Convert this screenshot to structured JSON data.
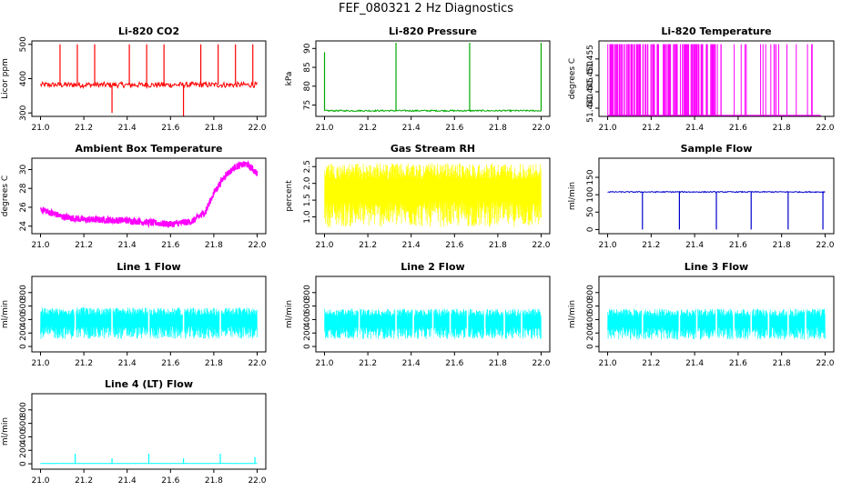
{
  "figure_title": "FEF_080321  2 Hz Diagnostics",
  "chart_data": [
    {
      "type": "line",
      "title": "Li-820 CO2",
      "ylabel": "Licor ppm",
      "xlim": [
        21.0,
        22.0
      ],
      "ylim": [
        290,
        510
      ],
      "x_ticks": [
        21.0,
        21.2,
        21.4,
        21.6,
        21.8,
        22.0
      ],
      "x_tick_labels": [
        "21.0",
        "21.2",
        "21.4",
        "21.6",
        "21.8",
        "22.0"
      ],
      "y_ticks": [
        300,
        400,
        500
      ],
      "y_tick_labels": [
        "300",
        "400",
        "500"
      ],
      "color": "#ff0000",
      "style": "noise",
      "baseline": 382,
      "noise": 8,
      "spikes": [
        [
          21.09,
          500
        ],
        [
          21.17,
          500
        ],
        [
          21.25,
          500
        ],
        [
          21.33,
          300
        ],
        [
          21.41,
          500
        ],
        [
          21.49,
          500
        ],
        [
          21.57,
          500
        ],
        [
          21.66,
          290
        ],
        [
          21.74,
          500
        ],
        [
          21.82,
          500
        ],
        [
          21.9,
          500
        ],
        [
          21.98,
          500
        ]
      ]
    },
    {
      "type": "line",
      "title": "Li-820 Pressure",
      "ylabel": "kPa",
      "xlim": [
        21.0,
        22.0
      ],
      "ylim": [
        72,
        92
      ],
      "x_ticks": [
        21.0,
        21.2,
        21.4,
        21.6,
        21.8,
        22.0
      ],
      "x_tick_labels": [
        "21.0",
        "21.2",
        "21.4",
        "21.6",
        "21.8",
        "22.0"
      ],
      "y_ticks": [
        75,
        80,
        85,
        90
      ],
      "y_tick_labels": [
        "75",
        "80",
        "85",
        "90"
      ],
      "color": "#00aa00",
      "style": "noise",
      "baseline": 73.5,
      "noise": 0.2,
      "spikes": [
        [
          21.0,
          89
        ],
        [
          21.33,
          91.5
        ],
        [
          21.67,
          91.5
        ],
        [
          22.0,
          91.5
        ]
      ]
    },
    {
      "type": "line",
      "title": "Li-820 Temperature",
      "ylabel": "degrees C",
      "xlim": [
        21.0,
        22.0
      ],
      "ylim": [
        51.4375,
        51.4605
      ],
      "x_ticks": [
        21.0,
        21.2,
        21.4,
        21.6,
        21.8,
        22.0
      ],
      "x_tick_labels": [
        "21.0",
        "21.2",
        "21.4",
        "21.6",
        "21.8",
        "22.0"
      ],
      "y_ticks": [
        51.44,
        51.445,
        51.45,
        51.455
      ],
      "y_tick_labels": [
        "51.440",
        "51.445",
        "51.450",
        "51.455"
      ],
      "color": "#ff00ff",
      "style": "binary",
      "low": 51.4378,
      "high": 51.4595,
      "x_end": 21.98
    },
    {
      "type": "line",
      "title": "Ambient Box Temperature",
      "ylabel": "degrees C",
      "xlim": [
        21.0,
        22.0
      ],
      "ylim": [
        23.2,
        31.2
      ],
      "x_ticks": [
        21.0,
        21.2,
        21.4,
        21.6,
        21.8,
        22.0
      ],
      "x_tick_labels": [
        "21.0",
        "21.2",
        "21.4",
        "21.6",
        "21.8",
        "22.0"
      ],
      "y_ticks": [
        24,
        26,
        28,
        30
      ],
      "y_tick_labels": [
        "24",
        "26",
        "28",
        "30"
      ],
      "color": "#ff00ff",
      "style": "curve",
      "noise": 0.35,
      "curve": [
        [
          21.0,
          25.8
        ],
        [
          21.1,
          25.0
        ],
        [
          21.2,
          24.7
        ],
        [
          21.4,
          24.6
        ],
        [
          21.6,
          24.2
        ],
        [
          21.7,
          24.5
        ],
        [
          21.76,
          25.5
        ],
        [
          21.8,
          27.5
        ],
        [
          21.85,
          29.3
        ],
        [
          21.9,
          30.3
        ],
        [
          21.95,
          30.6
        ],
        [
          22.0,
          29.6
        ]
      ]
    },
    {
      "type": "line",
      "title": "Gas Stream RH",
      "ylabel": "percent",
      "xlim": [
        21.0,
        22.0
      ],
      "ylim": [
        0.5,
        2.75
      ],
      "x_ticks": [
        21.0,
        21.2,
        21.4,
        21.6,
        21.8,
        22.0
      ],
      "x_tick_labels": [
        "21.0",
        "21.2",
        "21.4",
        "21.6",
        "21.8",
        "22.0"
      ],
      "y_ticks": [
        1.0,
        1.5,
        2.0,
        2.5
      ],
      "y_tick_labels": [
        "1.0",
        "1.5",
        "2.0",
        "2.5"
      ],
      "color": "#ffff00",
      "style": "band",
      "low": 0.7,
      "high": 2.6
    },
    {
      "type": "line",
      "title": "Sample Flow",
      "ylabel": "ml/min",
      "xlim": [
        21.0,
        22.0
      ],
      "ylim": [
        -12,
        205
      ],
      "x_ticks": [
        21.0,
        21.2,
        21.4,
        21.6,
        21.8,
        22.0
      ],
      "x_tick_labels": [
        "21.0",
        "21.2",
        "21.4",
        "21.6",
        "21.8",
        "22.0"
      ],
      "y_ticks": [
        0,
        50,
        100,
        150
      ],
      "y_tick_labels": [
        "0",
        "50",
        "100",
        "150"
      ],
      "color": "#0000cc",
      "style": "noise",
      "baseline": 108,
      "noise": 1.5,
      "spikes": [
        [
          21.16,
          0
        ],
        [
          21.33,
          0
        ],
        [
          21.5,
          0
        ],
        [
          21.66,
          0
        ],
        [
          21.83,
          0
        ],
        [
          21.99,
          0
        ]
      ]
    },
    {
      "type": "line",
      "title": "Line 1 Flow",
      "ylabel": "ml/min",
      "xlim": [
        21.0,
        22.0
      ],
      "ylim": [
        -80,
        1040
      ],
      "x_ticks": [
        21.0,
        21.2,
        21.4,
        21.6,
        21.8,
        22.0
      ],
      "x_tick_labels": [
        "21.0",
        "21.2",
        "21.4",
        "21.6",
        "21.8",
        "22.0"
      ],
      "y_ticks": [
        0,
        200,
        400,
        600,
        800
      ],
      "y_tick_labels": [
        "0",
        "200",
        "400",
        "600",
        "800"
      ],
      "color": "#00ffff",
      "style": "band",
      "low": 110,
      "high": 580,
      "gaps": [
        21.16,
        21.33,
        21.5,
        21.66,
        21.83
      ]
    },
    {
      "type": "line",
      "title": "Line 2 Flow",
      "ylabel": "ml/min",
      "xlim": [
        21.0,
        22.0
      ],
      "ylim": [
        -80,
        1040
      ],
      "x_ticks": [
        21.0,
        21.2,
        21.4,
        21.6,
        21.8,
        22.0
      ],
      "x_tick_labels": [
        "21.0",
        "21.2",
        "21.4",
        "21.6",
        "21.8",
        "22.0"
      ],
      "y_ticks": [
        0,
        200,
        400,
        600,
        800
      ],
      "y_tick_labels": [
        "0",
        "200",
        "400",
        "600",
        "800"
      ],
      "color": "#00ffff",
      "style": "band",
      "low": 110,
      "high": 560,
      "gaps": [
        21.16,
        21.33,
        21.41,
        21.5,
        21.58,
        21.66,
        21.74,
        21.83,
        21.91
      ]
    },
    {
      "type": "line",
      "title": "Line 3 Flow",
      "ylabel": "ml/min",
      "xlim": [
        21.0,
        22.0
      ],
      "ylim": [
        -80,
        1040
      ],
      "x_ticks": [
        21.0,
        21.2,
        21.4,
        21.6,
        21.8,
        22.0
      ],
      "x_tick_labels": [
        "21.0",
        "21.2",
        "21.4",
        "21.6",
        "21.8",
        "22.0"
      ],
      "y_ticks": [
        0,
        200,
        400,
        600,
        800
      ],
      "y_tick_labels": [
        "0",
        "200",
        "400",
        "600",
        "800"
      ],
      "color": "#00ffff",
      "style": "band",
      "low": 100,
      "high": 560,
      "gaps": [
        21.16,
        21.33,
        21.41,
        21.5,
        21.58,
        21.66,
        21.74,
        21.83,
        21.91
      ]
    },
    {
      "type": "line",
      "title": "Line 4 (LT) Flow",
      "ylabel": "ml/min",
      "xlim": [
        21.0,
        22.0
      ],
      "ylim": [
        -80,
        1040
      ],
      "x_ticks": [
        21.0,
        21.2,
        21.4,
        21.6,
        21.8,
        22.0
      ],
      "x_tick_labels": [
        "21.0",
        "21.2",
        "21.4",
        "21.6",
        "21.8",
        "22.0"
      ],
      "y_ticks": [
        0,
        200,
        400,
        600,
        800
      ],
      "y_tick_labels": [
        "0",
        "200",
        "400",
        "600",
        "800"
      ],
      "color": "#00ffff",
      "style": "noise",
      "baseline": 5,
      "noise": 2,
      "spikes": [
        [
          21.16,
          150
        ],
        [
          21.33,
          80
        ],
        [
          21.5,
          150
        ],
        [
          21.66,
          80
        ],
        [
          21.83,
          150
        ],
        [
          21.99,
          100
        ]
      ]
    }
  ]
}
